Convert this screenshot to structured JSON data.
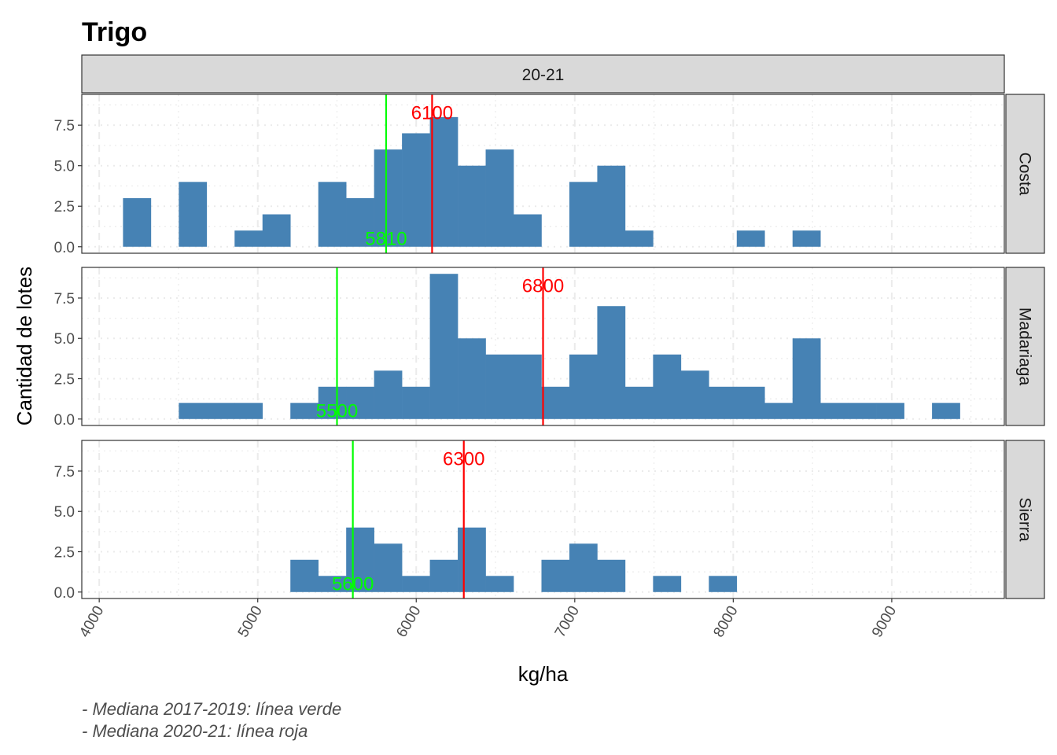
{
  "chart_data": {
    "type": "bar",
    "title": "Trigo",
    "xlabel": "kg/ha",
    "ylabel": "Cantidad de lotes",
    "column_strip": "20-21",
    "xlim": [
      3890,
      9710
    ],
    "ylim": [
      -0.4,
      9.4
    ],
    "x_ticks": [
      4000,
      5000,
      6000,
      7000,
      8000,
      9000
    ],
    "x_tick_labels": [
      "4000",
      "5000",
      "6000",
      "7000",
      "8000",
      "9000"
    ],
    "y_ticks": [
      0,
      2.5,
      5,
      7.5
    ],
    "y_tick_labels": [
      "0.0",
      "2.5",
      "5.0",
      "7.5"
    ],
    "grid": true,
    "bin_width": 176,
    "bin_start": 4150,
    "panels": [
      {
        "name": "Costa",
        "counts": [
          3,
          0,
          4,
          0,
          1,
          2,
          0,
          4,
          3,
          6,
          7,
          8,
          5,
          6,
          2,
          0,
          4,
          5,
          1,
          0,
          0,
          0,
          1,
          0,
          1
        ],
        "median_prev": 5810,
        "median_prev_label": "5810",
        "median_curr": 6100,
        "median_curr_label": "6100"
      },
      {
        "name": "Madariaga",
        "counts": [
          0,
          0,
          1,
          1,
          1,
          0,
          1,
          2,
          2,
          3,
          2,
          9,
          5,
          4,
          4,
          2,
          4,
          7,
          2,
          4,
          3,
          2,
          2,
          1,
          5,
          1,
          1,
          1,
          0,
          1
        ],
        "median_prev": 5500,
        "median_prev_label": "5500",
        "median_curr": 6800,
        "median_curr_label": "6800"
      },
      {
        "name": "Sierra",
        "counts": [
          0,
          0,
          0,
          0,
          0,
          0,
          2,
          1,
          4,
          3,
          1,
          2,
          4,
          1,
          0,
          2,
          3,
          2,
          0,
          1,
          0,
          1
        ],
        "median_prev": 5600,
        "median_prev_label": "5600",
        "median_curr": 6300,
        "median_curr_label": "6300"
      }
    ],
    "caption_lines": [
      "- Mediana 2017-2019: línea verde",
      "- Mediana 2020-21: línea roja"
    ],
    "colors": {
      "bars": "#4682b4",
      "median_prev": "#00ff00",
      "median_curr": "#ff0000",
      "strip_fill": "#d9d9d9",
      "panel_border": "#333333",
      "grid": "#ebebeb"
    }
  }
}
